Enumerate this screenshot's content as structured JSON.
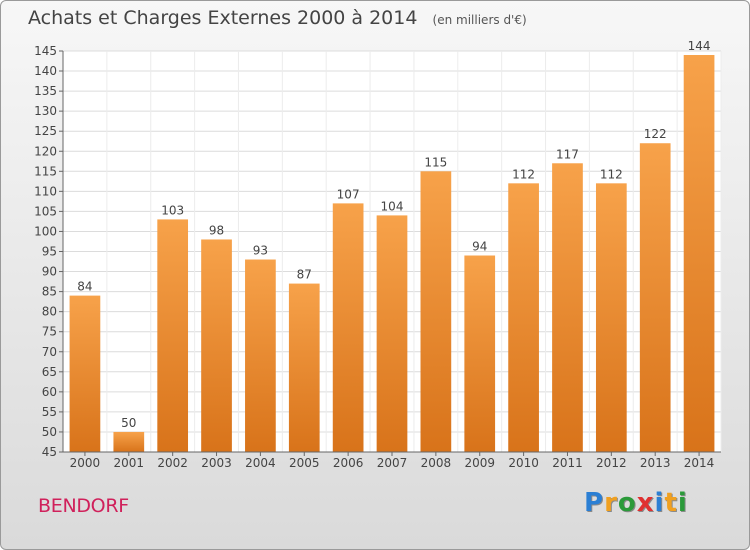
{
  "title": "Achats et Charges Externes 2000 à 2014",
  "subtitle": "(en milliers d'€)",
  "commune": "BENDORF",
  "logo": {
    "letters": [
      "P",
      "r",
      "o",
      "x",
      "i",
      "t",
      "i"
    ],
    "colors": [
      "#2b7fd4",
      "#f0a020",
      "#2b9a3a",
      "#e03030",
      "#2b7fd4",
      "#f0a020",
      "#2b9a3a"
    ]
  },
  "chart_data": {
    "type": "bar",
    "categories": [
      "2000",
      "2001",
      "2002",
      "2003",
      "2004",
      "2005",
      "2006",
      "2007",
      "2008",
      "2009",
      "2010",
      "2011",
      "2012",
      "2013",
      "2014"
    ],
    "values": [
      84,
      50,
      103,
      98,
      93,
      87,
      107,
      104,
      115,
      94,
      112,
      117,
      112,
      122,
      144
    ],
    "ylim": [
      45,
      145
    ],
    "yticks": [
      45,
      50,
      55,
      60,
      65,
      70,
      75,
      80,
      85,
      90,
      95,
      100,
      105,
      110,
      115,
      120,
      125,
      130,
      135,
      140,
      145
    ],
    "grid": true,
    "bar_color": "#f0902e",
    "data_labels": true
  }
}
